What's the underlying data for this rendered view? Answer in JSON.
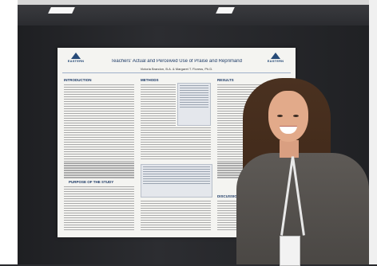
{
  "poster": {
    "title": "Teachers' Actual and Perceived Use of Praise and Reprimand",
    "authors": "Victoria Brandon, B.A. & Margaret T. Floress, Ph.D.",
    "logo_text": "EASTERN",
    "sections": {
      "introduction": "INTRODUCTION",
      "methods": "METHODS",
      "results": "RESULTS",
      "purpose": "PURPOSE OF THE STUDY",
      "discussion": "DISCUSSION"
    }
  },
  "colors": {
    "poster_accent": "#1d3a66",
    "wall": "#2a2b2f",
    "poster_bg": "#f4f4f1"
  }
}
